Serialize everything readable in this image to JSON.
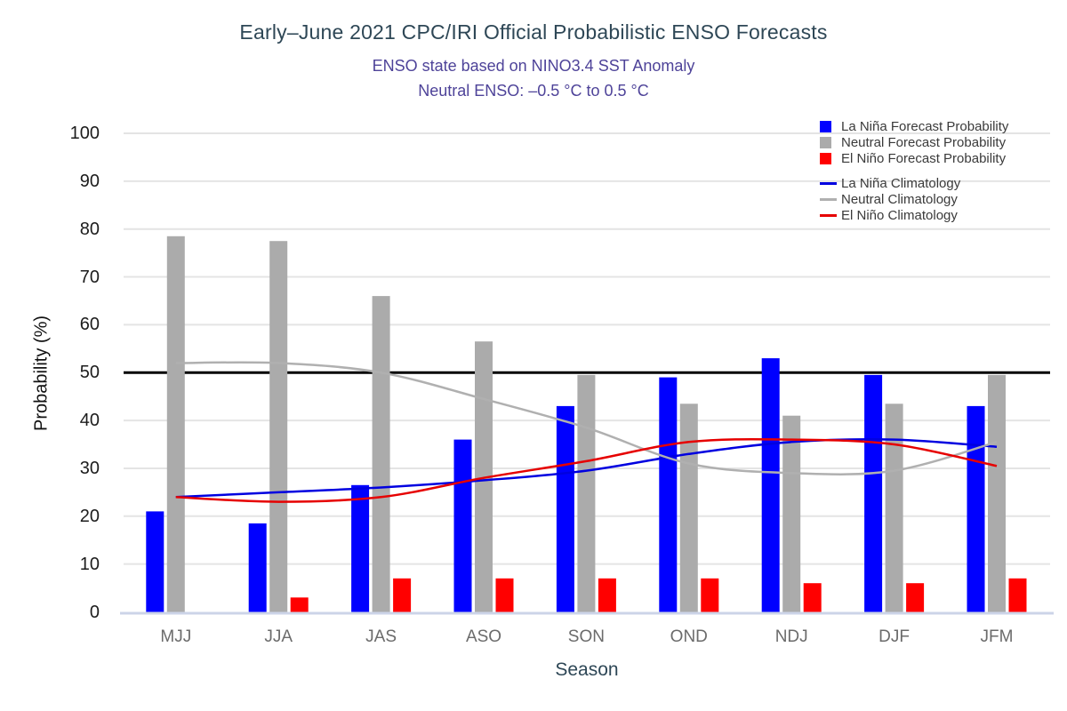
{
  "chart_data": {
    "type": "bar+line",
    "title": "Early–June 2021 CPC/IRI Official Probabilistic ENSO Forecasts",
    "subtitle1": "ENSO state based on NINO3.4 SST Anomaly",
    "subtitle2": "Neutral ENSO: –0.5 °C to 0.5 °C",
    "xlabel": "Season",
    "ylabel": "Probability (%)",
    "categories": [
      "MJJ",
      "JJA",
      "JAS",
      "ASO",
      "SON",
      "OND",
      "NDJ",
      "DJF",
      "JFM"
    ],
    "ylim": [
      0,
      100
    ],
    "ytick_step": 10,
    "grid": true,
    "legend_position": "top-right",
    "reference_line": {
      "value": 50,
      "color": "#000000"
    },
    "bar_series": [
      {
        "name": "La Niña Forecast Probability",
        "color": "#0000ff",
        "values": [
          21,
          18.5,
          26.5,
          36,
          43,
          49,
          53,
          49.5,
          43
        ]
      },
      {
        "name": "Neutral Forecast Probability",
        "color": "#ababab",
        "values": [
          78.5,
          77.5,
          66,
          56.5,
          49.5,
          43.5,
          41,
          43.5,
          49.5
        ]
      },
      {
        "name": "El Niño Forecast Probability",
        "color": "#ff0000",
        "values": [
          0,
          3,
          7,
          7,
          7,
          7,
          6,
          6,
          7
        ]
      }
    ],
    "line_series": [
      {
        "name": "La Niña Climatology",
        "color": "#0000e0",
        "values": [
          24,
          25,
          26,
          27.5,
          29.5,
          33,
          35.5,
          36,
          34.5
        ]
      },
      {
        "name": "Neutral Climatology",
        "color": "#b0b0b0",
        "values": [
          52,
          52,
          50,
          44.5,
          38.5,
          31,
          29,
          29.5,
          35.5
        ]
      },
      {
        "name": "El Niño Climatology",
        "color": "#e60000",
        "values": [
          24,
          23,
          24,
          28,
          31.5,
          35.5,
          36,
          35,
          30.5
        ]
      }
    ],
    "colors": {
      "grid": "#e4e4e4",
      "baseline": "#ccd4e8",
      "title": "#2e4756",
      "subtitle": "#4e4399",
      "x_tick": "#6b6b6b",
      "y_tick": "#1c1c1c",
      "legend_text": "#3a3a3a"
    }
  }
}
